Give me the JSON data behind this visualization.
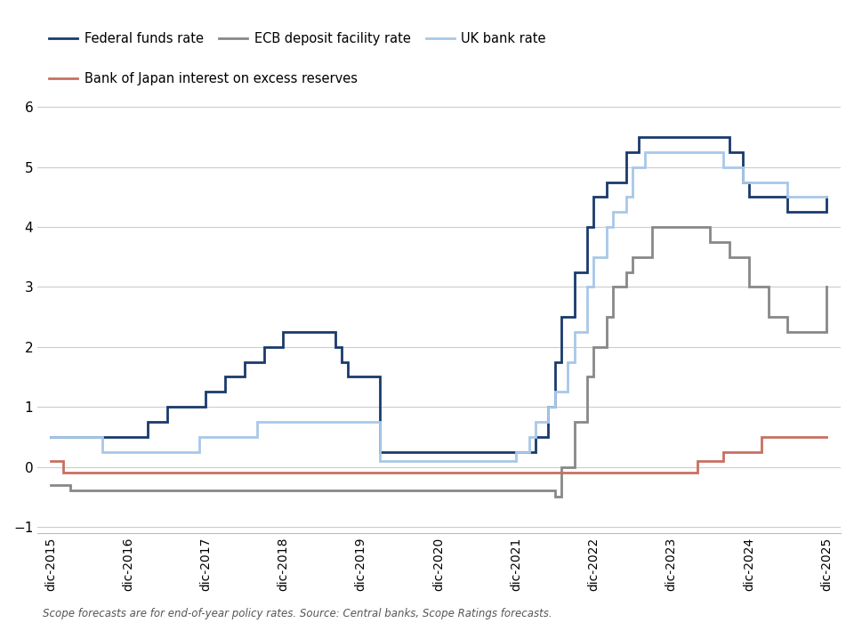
{
  "background_color": "#ffffff",
  "ylim": [
    -1.1,
    6.2
  ],
  "yticks": [
    -1,
    0,
    1,
    2,
    3,
    4,
    5,
    6
  ],
  "series": {
    "fed": {
      "label": "Federal funds rate",
      "color": "#1a3a6b",
      "linewidth": 2.0,
      "data": [
        [
          2015,
          12,
          0.5
        ],
        [
          2016,
          12,
          0.5
        ],
        [
          2017,
          3,
          0.75
        ],
        [
          2017,
          6,
          1.0
        ],
        [
          2017,
          12,
          1.25
        ],
        [
          2018,
          3,
          1.5
        ],
        [
          2018,
          6,
          1.75
        ],
        [
          2018,
          9,
          2.0
        ],
        [
          2018,
          12,
          2.25
        ],
        [
          2019,
          3,
          2.25
        ],
        [
          2019,
          8,
          2.0
        ],
        [
          2019,
          9,
          1.75
        ],
        [
          2019,
          10,
          1.5
        ],
        [
          2019,
          12,
          1.5
        ],
        [
          2020,
          3,
          0.25
        ],
        [
          2020,
          12,
          0.25
        ],
        [
          2021,
          12,
          0.25
        ],
        [
          2022,
          3,
          0.5
        ],
        [
          2022,
          5,
          1.0
        ],
        [
          2022,
          6,
          1.75
        ],
        [
          2022,
          7,
          2.5
        ],
        [
          2022,
          9,
          3.25
        ],
        [
          2022,
          11,
          4.0
        ],
        [
          2022,
          12,
          4.5
        ],
        [
          2023,
          2,
          4.75
        ],
        [
          2023,
          5,
          5.25
        ],
        [
          2023,
          7,
          5.5
        ],
        [
          2023,
          12,
          5.5
        ],
        [
          2024,
          9,
          5.25
        ],
        [
          2024,
          11,
          4.75
        ],
        [
          2024,
          12,
          4.5
        ],
        [
          2025,
          6,
          4.25
        ],
        [
          2025,
          12,
          4.5
        ]
      ]
    },
    "ecb": {
      "label": "ECB deposit facility rate",
      "color": "#888888",
      "linewidth": 2.0,
      "data": [
        [
          2015,
          12,
          -0.3
        ],
        [
          2016,
          3,
          -0.4
        ],
        [
          2022,
          6,
          -0.5
        ],
        [
          2022,
          7,
          0.0
        ],
        [
          2022,
          9,
          0.75
        ],
        [
          2022,
          11,
          1.5
        ],
        [
          2022,
          12,
          2.0
        ],
        [
          2023,
          2,
          2.5
        ],
        [
          2023,
          3,
          3.0
        ],
        [
          2023,
          5,
          3.25
        ],
        [
          2023,
          6,
          3.5
        ],
        [
          2023,
          9,
          4.0
        ],
        [
          2023,
          12,
          4.0
        ],
        [
          2024,
          6,
          3.75
        ],
        [
          2024,
          9,
          3.5
        ],
        [
          2024,
          12,
          3.0
        ],
        [
          2025,
          3,
          2.5
        ],
        [
          2025,
          6,
          2.25
        ],
        [
          2025,
          12,
          3.0
        ]
      ]
    },
    "uk": {
      "label": "UK bank rate",
      "color": "#a8c8e8",
      "linewidth": 2.0,
      "data": [
        [
          2015,
          12,
          0.5
        ],
        [
          2016,
          8,
          0.25
        ],
        [
          2017,
          11,
          0.5
        ],
        [
          2018,
          8,
          0.75
        ],
        [
          2020,
          3,
          0.1
        ],
        [
          2021,
          12,
          0.25
        ],
        [
          2022,
          2,
          0.5
        ],
        [
          2022,
          3,
          0.75
        ],
        [
          2022,
          5,
          1.0
        ],
        [
          2022,
          6,
          1.25
        ],
        [
          2022,
          8,
          1.75
        ],
        [
          2022,
          9,
          2.25
        ],
        [
          2022,
          11,
          3.0
        ],
        [
          2022,
          12,
          3.5
        ],
        [
          2023,
          2,
          4.0
        ],
        [
          2023,
          3,
          4.25
        ],
        [
          2023,
          5,
          4.5
        ],
        [
          2023,
          6,
          5.0
        ],
        [
          2023,
          8,
          5.25
        ],
        [
          2023,
          12,
          5.25
        ],
        [
          2024,
          8,
          5.0
        ],
        [
          2024,
          11,
          4.75
        ],
        [
          2024,
          12,
          4.75
        ],
        [
          2025,
          6,
          4.5
        ],
        [
          2025,
          12,
          4.5
        ]
      ]
    },
    "boj": {
      "label": "Bank of Japan interest on excess reserves",
      "color": "#c87060",
      "linewidth": 2.0,
      "data": [
        [
          2015,
          12,
          0.1
        ],
        [
          2016,
          1,
          0.1
        ],
        [
          2016,
          2,
          -0.1
        ],
        [
          2024,
          3,
          -0.1
        ],
        [
          2024,
          4,
          0.1
        ],
        [
          2024,
          7,
          0.1
        ],
        [
          2024,
          8,
          0.25
        ],
        [
          2024,
          12,
          0.25
        ],
        [
          2025,
          1,
          0.25
        ],
        [
          2025,
          2,
          0.5
        ],
        [
          2025,
          12,
          0.5
        ]
      ]
    }
  },
  "xtick_labels": [
    "dic-2015",
    "dic-2016",
    "dic-2017",
    "dic-2018",
    "dic-2019",
    "dic-2020",
    "dic-2021",
    "dic-2022",
    "dic-2023",
    "dic-2024",
    "dic-2025"
  ],
  "grid_color": "#cccccc",
  "footnote": "Scope forecasts are for end-of-year policy rates. Source: Central banks, Scope Ratings forecasts."
}
